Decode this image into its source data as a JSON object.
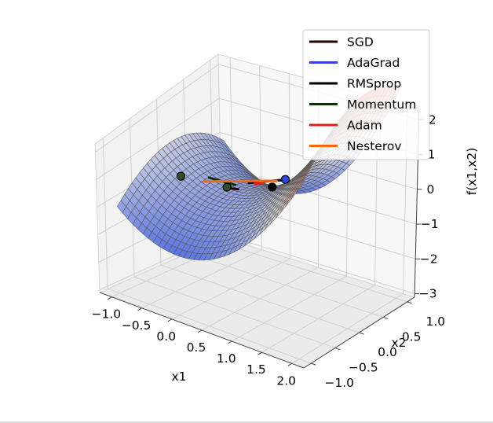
{
  "chart_data": {
    "type": "surface3d",
    "surface": {
      "function": "f(x1,x2) = x1^2 - x2^2",
      "x1_range": [
        -1.0,
        2.0
      ],
      "x2_range": [
        -1.0,
        1.0
      ],
      "edge_color": "#555555",
      "colormap_low": "#4f6be0",
      "colormap_mid": "#e2e2e2",
      "colormap_high": "#e8572f"
    },
    "axes": {
      "x1": {
        "label": "x1",
        "ticks": [
          -1.0,
          -0.5,
          0.0,
          0.5,
          1.0,
          1.5,
          2.0
        ],
        "tick_labels": [
          "−1.0",
          "−0.5",
          "0.0",
          "0.5",
          "1.0",
          "1.5",
          "2.0"
        ]
      },
      "x2": {
        "label": "x2",
        "ticks": [
          -1.0,
          -0.5,
          0.0,
          0.5,
          1.0
        ],
        "tick_labels": [
          "−1.0",
          "−0.5",
          "0.0",
          "0.5",
          "1.0"
        ]
      },
      "z": {
        "label": "f(x1,x2)",
        "ticks": [
          -3,
          -2,
          -1,
          0,
          1,
          2
        ],
        "tick_labels": [
          "−3",
          "−2",
          "−1",
          "0",
          "1",
          "2"
        ]
      }
    },
    "series": [
      {
        "name": "SGD",
        "color": "#2b0000",
        "path": [
          [
            0.0,
            0.0
          ],
          [
            0.12,
            0.02
          ]
        ]
      },
      {
        "name": "AdaGrad",
        "color": "#3344dd",
        "path": [
          [
            0.4,
            0.5
          ],
          [
            0.45,
            0.55
          ]
        ]
      },
      {
        "name": "RMSprop",
        "color": "#000000",
        "path": [
          [
            0.1,
            0.25
          ],
          [
            0.55,
            0.35
          ]
        ]
      },
      {
        "name": "Momentum",
        "color": "#003300",
        "path": [
          [
            -0.35,
            0.0
          ],
          [
            0.0,
            0.1
          ]
        ]
      },
      {
        "name": "Adam",
        "color": "#dd2211",
        "path": [
          [
            0.2,
            0.25
          ],
          [
            0.3,
            0.3
          ]
        ]
      },
      {
        "name": "Nesterov",
        "color": "#ff6611",
        "path": [
          [
            -0.35,
            -0.1
          ],
          [
            0.35,
            0.5
          ]
        ]
      }
    ],
    "markers": [
      {
        "x1": -0.6,
        "x2": -0.25
      },
      {
        "x1": -0.05,
        "x2": 0.0
      },
      {
        "x1": 0.75,
        "x2": -0.05
      },
      {
        "x1": 0.5,
        "x2": 0.5
      }
    ],
    "legend": {
      "position": "top-right",
      "entries": [
        "SGD",
        "AdaGrad",
        "RMSprop",
        "Momentum",
        "Adam",
        "Nesterov"
      ]
    },
    "grid": true
  }
}
